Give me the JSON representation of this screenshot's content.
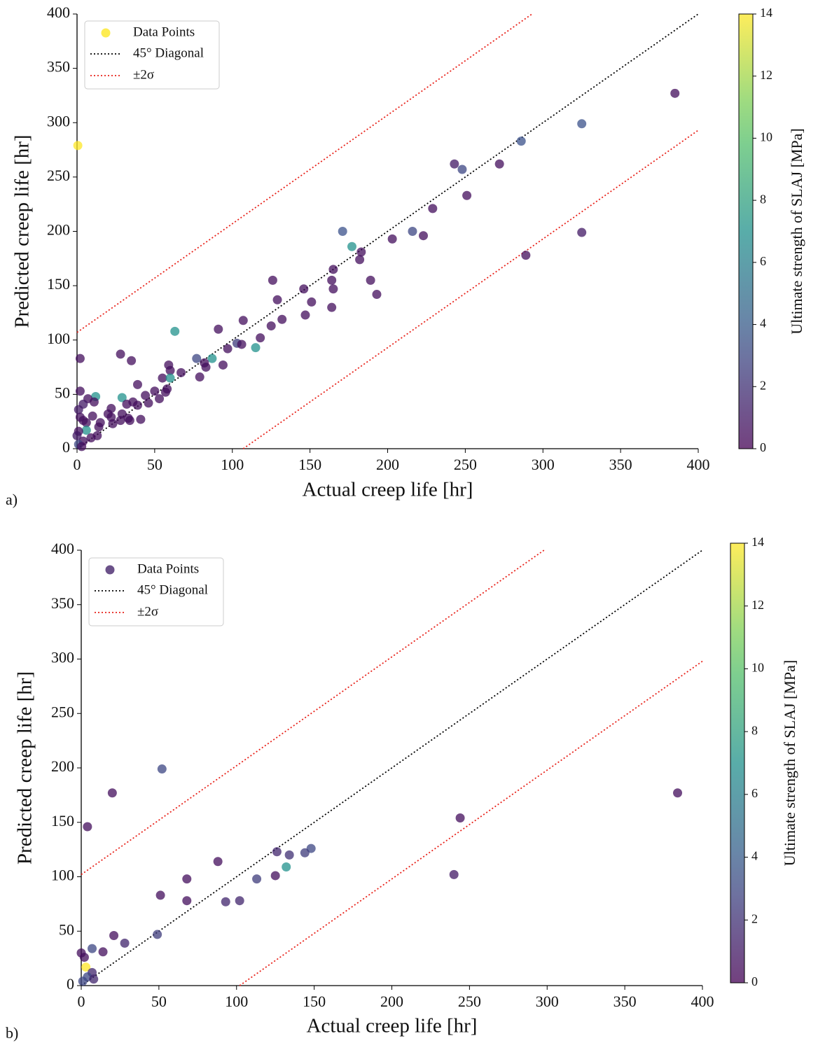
{
  "chart_data": [
    {
      "type": "scatter",
      "panel_label": "a)",
      "x_label": "Actual creep life [hr]",
      "y_label": "Predicted creep life [hr]",
      "xlim": [
        0,
        400
      ],
      "ylim": [
        0,
        400
      ],
      "xticks": [
        0,
        50,
        100,
        150,
        200,
        250,
        300,
        350,
        400
      ],
      "yticks": [
        0,
        50,
        100,
        150,
        200,
        250,
        300,
        350,
        400
      ],
      "legend": "upper left",
      "series": [
        {
          "name": "Data Points",
          "color": "#fde725",
          "x": [
            0.5,
            385,
            325,
            286,
            243,
            248,
            272,
            251,
            229,
            216,
            223,
            203,
            171,
            177,
            183,
            182,
            165,
            289,
            325,
            126,
            164,
            189,
            146,
            165,
            193,
            129,
            151,
            164,
            147,
            132,
            107,
            125,
            91,
            63,
            118,
            103,
            106,
            97,
            115,
            2,
            28,
            35,
            77,
            87,
            82,
            83,
            94,
            59,
            60,
            67,
            79,
            55,
            60,
            39,
            58,
            57,
            50,
            44,
            53,
            2,
            12,
            29,
            7,
            11,
            4,
            36,
            46,
            32,
            39,
            22,
            1,
            20,
            10,
            29,
            22,
            33,
            41,
            28,
            34,
            2,
            4,
            6,
            15,
            23,
            14,
            6,
            1,
            13,
            9,
            4,
            1,
            3,
            0
          ],
          "values": [
            279,
            327,
            299,
            283,
            262,
            257,
            262,
            233,
            221,
            200,
            196,
            193,
            200,
            186,
            181,
            174,
            165,
            178,
            199,
            155,
            155,
            155,
            147,
            147,
            142,
            137,
            135,
            130,
            123,
            119,
            118,
            113,
            110,
            108,
            102,
            97,
            96,
            92,
            93,
            83,
            87,
            81,
            83,
            83,
            79,
            75,
            77,
            77,
            72,
            70,
            66,
            65,
            65,
            59,
            55,
            52,
            53,
            49,
            46,
            53,
            48,
            47,
            46,
            43,
            41,
            43,
            42,
            41,
            40,
            37,
            36,
            32,
            30,
            32,
            29,
            28,
            27,
            26,
            26,
            29,
            26,
            24,
            24,
            23,
            20,
            17,
            16,
            12,
            10,
            7,
            4,
            2,
            12
          ],
          "c": [
            14,
            0.5,
            3.5,
            3.5,
            1,
            3,
            0.5,
            0.5,
            0.5,
            3,
            0.5,
            0.5,
            3.5,
            7,
            0.5,
            0.5,
            0.5,
            0.5,
            1,
            0.5,
            0.5,
            0.5,
            0.5,
            0.5,
            0.5,
            0.5,
            0.5,
            0.5,
            0.5,
            0.5,
            0.5,
            0.5,
            0.5,
            7,
            0.5,
            2.5,
            0.5,
            0.5,
            7,
            0.5,
            0.5,
            0.5,
            3,
            7,
            0.5,
            0.5,
            0.5,
            0.5,
            0.5,
            0.5,
            0.5,
            0.5,
            7,
            0.5,
            0.5,
            0.5,
            0.5,
            0.5,
            0.5,
            0.5,
            7,
            7,
            0.5,
            0.5,
            1,
            0.5,
            0.5,
            0.5,
            0.5,
            0.5,
            1,
            0.5,
            0.5,
            0.5,
            0.5,
            0.5,
            0.5,
            0.5,
            0.5,
            0.5,
            0.5,
            0.5,
            0.5,
            0.5,
            0.5,
            7,
            0.5,
            0.5,
            0.5,
            0.5,
            3,
            0.5,
            1
          ]
        }
      ],
      "diagonal": {
        "name": "45° Diagonal",
        "color": "#000000"
      },
      "bands": {
        "name": "±2σ",
        "color": "#e8221a",
        "offset": 107
      },
      "colorbar": {
        "label": "Ultimate strength of SLAJ [MPa]",
        "clim": [
          0,
          14
        ],
        "ticks": [
          0,
          2,
          4,
          6,
          8,
          10,
          12,
          14
        ],
        "colormap": "viridis"
      }
    },
    {
      "type": "scatter",
      "panel_label": "b)",
      "x_label": "Actual creep life [hr]",
      "y_label": "Predicted creep life [hr]",
      "xlim": [
        0,
        400
      ],
      "ylim": [
        0,
        400
      ],
      "xticks": [
        0,
        50,
        100,
        150,
        200,
        250,
        300,
        350,
        400
      ],
      "yticks": [
        0,
        50,
        100,
        150,
        200,
        250,
        300,
        350,
        400
      ],
      "legend": "upper left",
      "series": [
        {
          "name": "Data Points",
          "color": "#46266b",
          "x": [
            52,
            20,
            384,
            4,
            244,
            240,
            88,
            126,
            148,
            144,
            134,
            132,
            125,
            113,
            68,
            51,
            68,
            93,
            102,
            49,
            21,
            28,
            7,
            14,
            0,
            2,
            3,
            7,
            4,
            8,
            1
          ],
          "values": [
            199,
            177,
            177,
            146,
            154,
            102,
            114,
            123,
            126,
            122,
            120,
            109,
            101,
            98,
            98,
            83,
            78,
            77,
            78,
            47,
            46,
            39,
            34,
            31,
            30,
            26,
            17,
            12,
            8,
            6,
            4
          ],
          "c": [
            3,
            0.5,
            0.5,
            0.5,
            0.5,
            1,
            0.5,
            1.5,
            3,
            2.5,
            2,
            7,
            0.5,
            2.5,
            0.5,
            0.5,
            0.5,
            1.5,
            1.5,
            2.5,
            0.5,
            1.5,
            3,
            0.5,
            0.5,
            0.5,
            14,
            1.5,
            3,
            1.5,
            3
          ]
        }
      ],
      "diagonal": {
        "name": "45° Diagonal",
        "color": "#000000"
      },
      "bands": {
        "name": "±2σ",
        "color": "#e8221a",
        "offset": 102
      },
      "colorbar": {
        "label": "Ultimate strength of SLAJ [MPa]",
        "clim": [
          0,
          14
        ],
        "ticks": [
          0,
          2,
          4,
          6,
          8,
          10,
          12,
          14
        ],
        "colormap": "viridis"
      }
    }
  ]
}
